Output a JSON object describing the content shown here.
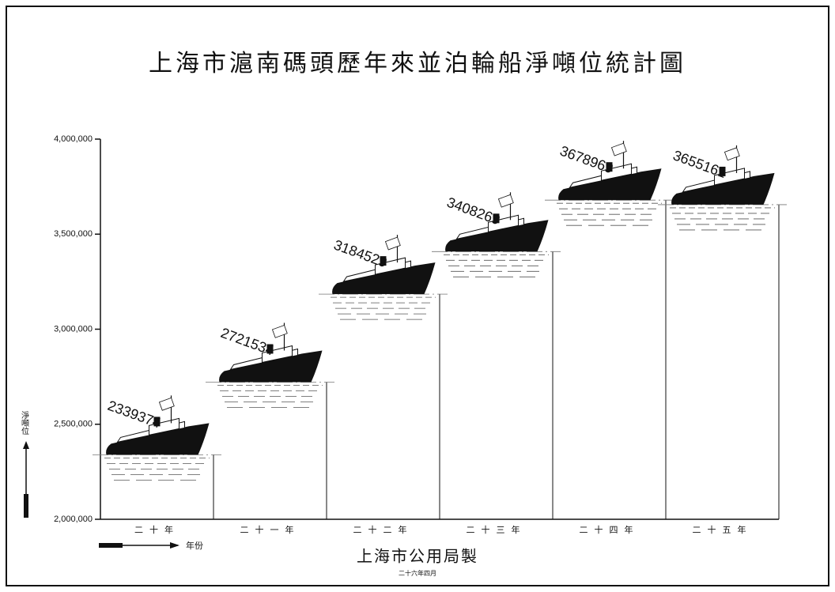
{
  "chart_data": {
    "type": "pictogram",
    "title": "上海市滬南碼頭歷年來並泊輪船淨噸位統計圖",
    "y_label": "淨噸位",
    "x_label": "年份",
    "footer": "上海市公用局製",
    "footer_date": "二十六年四月",
    "categories": [
      "二十年",
      "二十一年",
      "二十二年",
      "二十三年",
      "二十四年",
      "二十五年"
    ],
    "values": [
      2339374,
      2721534,
      3184529,
      3408269,
      3678969,
      3655161
    ],
    "color": "#111111",
    "ylim": [
      2000000,
      4000000
    ],
    "yticks": [
      {
        "value": 2000000,
        "label": "2,000,000"
      },
      {
        "value": 2500000,
        "label": "2,500,000"
      },
      {
        "value": 3000000,
        "label": "3,000,000"
      },
      {
        "value": 3500000,
        "label": "3,500,000"
      },
      {
        "value": 4000000,
        "label": "4,000,000"
      }
    ]
  }
}
